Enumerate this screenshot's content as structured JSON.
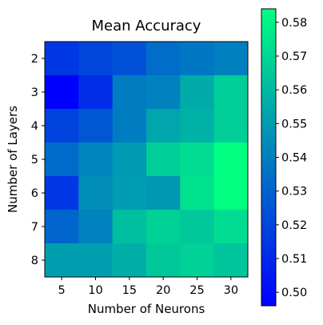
{
  "chart_data": {
    "type": "heatmap",
    "title": "Mean Accuracy",
    "xlabel": "Number of Neurons",
    "ylabel": "Number of Layers",
    "x_categories": [
      "5",
      "10",
      "15",
      "20",
      "25",
      "30"
    ],
    "y_categories": [
      "2",
      "3",
      "4",
      "5",
      "6",
      "7",
      "8"
    ],
    "values": [
      [
        0.515,
        0.52,
        0.524,
        0.534,
        0.537,
        0.54
      ],
      [
        0.496,
        0.512,
        0.539,
        0.541,
        0.555,
        0.567
      ],
      [
        0.519,
        0.526,
        0.539,
        0.553,
        0.557,
        0.567
      ],
      [
        0.533,
        0.542,
        0.549,
        0.567,
        0.572,
        0.585
      ],
      [
        0.515,
        0.545,
        0.55,
        0.548,
        0.574,
        0.585
      ],
      [
        0.531,
        0.541,
        0.562,
        0.568,
        0.565,
        0.572
      ],
      [
        0.551,
        0.551,
        0.556,
        0.565,
        0.568,
        0.564
      ]
    ],
    "colorbar": {
      "min": 0.496,
      "max": 0.584,
      "ticks": [
        "0.50",
        "0.51",
        "0.52",
        "0.53",
        "0.54",
        "0.55",
        "0.56",
        "0.57",
        "0.58"
      ],
      "colormap": "winter",
      "low_color": "#0000ff",
      "high_color": "#00ff80"
    },
    "grid": false
  }
}
